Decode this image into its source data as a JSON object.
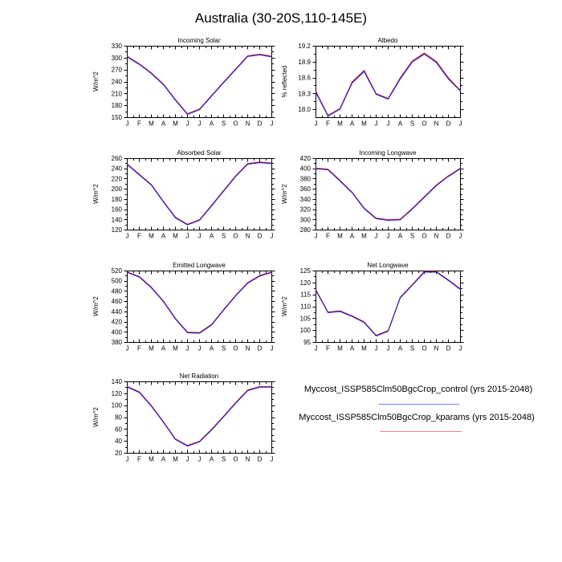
{
  "page_title": "Australia (30-20S,110-145E)",
  "months": [
    "J",
    "F",
    "M",
    "A",
    "M",
    "J",
    "J",
    "A",
    "S",
    "O",
    "N",
    "D",
    "J"
  ],
  "colors": {
    "control_line": "#2222cc",
    "kparams_line": "#cc2222",
    "legend_control_swatch": "#7a7aff",
    "legend_kparams_swatch": "#ff8080",
    "axis": "#000000"
  },
  "legend": {
    "entries": [
      {
        "name": "control",
        "label": "Myccost_ISSP585Clm50BgcCrop_control (yrs 2015-2048)"
      },
      {
        "name": "kparams",
        "label": "Myccost_ISSP585Clm50BgcCrop_kparams (yrs 2015-2048)"
      }
    ]
  },
  "chart_data": [
    {
      "type": "line",
      "title": "Incoming Solar",
      "ylabel": "W/m^2",
      "ylim": [
        150,
        330
      ],
      "yticks": [
        "150",
        "180",
        "210",
        "240",
        "270",
        "300",
        "330"
      ],
      "grid": false,
      "categories": [
        "J",
        "F",
        "M",
        "A",
        "M",
        "J",
        "J",
        "A",
        "S",
        "O",
        "N",
        "D",
        "J"
      ],
      "series": [
        {
          "name": "control",
          "values": [
            303,
            284,
            261,
            233,
            194,
            158,
            170,
            204,
            238,
            271,
            304,
            308,
            303
          ]
        },
        {
          "name": "kparams",
          "values": [
            303,
            284,
            261,
            233,
            194,
            158,
            170,
            204,
            238,
            271,
            304,
            308,
            303
          ]
        }
      ]
    },
    {
      "type": "line",
      "title": "Albedo",
      "ylabel": "% reflected",
      "ylim": [
        17.85,
        19.2
      ],
      "yticks": [
        "18.0",
        "18.3",
        "18.6",
        "18.9",
        "19.2"
      ],
      "grid": false,
      "categories": [
        "J",
        "F",
        "M",
        "A",
        "M",
        "J",
        "J",
        "A",
        "S",
        "O",
        "N",
        "D",
        "J"
      ],
      "series": [
        {
          "name": "control",
          "values": [
            18.32,
            17.88,
            18.01,
            18.5,
            18.72,
            18.29,
            18.2,
            18.58,
            18.9,
            19.05,
            18.89,
            18.58,
            18.35
          ]
        },
        {
          "name": "kparams",
          "values": [
            18.33,
            17.88,
            18.01,
            18.51,
            18.73,
            18.29,
            18.2,
            18.59,
            18.91,
            19.06,
            18.9,
            18.59,
            18.35
          ]
        }
      ]
    },
    {
      "type": "line",
      "title": "Absorbed Solar",
      "ylabel": "W/m^2",
      "ylim": [
        120,
        260
      ],
      "yticks": [
        "120",
        "140",
        "160",
        "180",
        "200",
        "220",
        "240",
        "260"
      ],
      "grid": false,
      "categories": [
        "J",
        "F",
        "M",
        "A",
        "M",
        "J",
        "J",
        "A",
        "S",
        "O",
        "N",
        "D",
        "J"
      ],
      "series": [
        {
          "name": "control",
          "values": [
            248,
            228,
            208,
            175,
            144,
            130,
            139,
            167,
            196,
            225,
            249,
            252,
            250
          ]
        },
        {
          "name": "kparams",
          "values": [
            248,
            228,
            208,
            175,
            144,
            130,
            139,
            167,
            196,
            225,
            249,
            252,
            250
          ]
        }
      ]
    },
    {
      "type": "line",
      "title": "Incoming Longwave",
      "ylabel": "W/m^2",
      "ylim": [
        280,
        420
      ],
      "yticks": [
        "280",
        "300",
        "320",
        "340",
        "360",
        "380",
        "400",
        "420"
      ],
      "grid": false,
      "categories": [
        "J",
        "F",
        "M",
        "A",
        "M",
        "J",
        "J",
        "A",
        "S",
        "O",
        "N",
        "D",
        "J"
      ],
      "series": [
        {
          "name": "control",
          "values": [
            400,
            398,
            376,
            353,
            322,
            302,
            299,
            300,
            321,
            344,
            367,
            385,
            400
          ]
        },
        {
          "name": "kparams",
          "values": [
            400,
            398,
            376,
            353,
            322,
            302,
            299,
            300,
            321,
            344,
            367,
            385,
            400
          ]
        }
      ]
    },
    {
      "type": "line",
      "title": "Emitted Longwave",
      "ylabel": "W/m^2",
      "ylim": [
        380,
        520
      ],
      "yticks": [
        "380",
        "400",
        "420",
        "440",
        "460",
        "480",
        "500",
        "520"
      ],
      "grid": false,
      "categories": [
        "J",
        "F",
        "M",
        "A",
        "M",
        "J",
        "J",
        "A",
        "S",
        "O",
        "N",
        "D",
        "J"
      ],
      "series": [
        {
          "name": "control",
          "values": [
            517,
            508,
            487,
            460,
            426,
            399,
            398,
            414,
            443,
            471,
            496,
            510,
            517
          ]
        },
        {
          "name": "kparams",
          "values": [
            517,
            508,
            487,
            460,
            426,
            399,
            398,
            414,
            443,
            471,
            496,
            510,
            517
          ]
        }
      ]
    },
    {
      "type": "line",
      "title": "Net Longwave",
      "ylabel": "W/m^2",
      "ylim": [
        95,
        125
      ],
      "yticks": [
        "95",
        "100",
        "105",
        "110",
        "115",
        "120",
        "125"
      ],
      "grid": false,
      "categories": [
        "J",
        "F",
        "M",
        "A",
        "M",
        "J",
        "J",
        "A",
        "S",
        "O",
        "N",
        "D",
        "J"
      ],
      "series": [
        {
          "name": "control",
          "values": [
            116.8,
            107.5,
            108.0,
            105.9,
            103.4,
            97.7,
            99.7,
            113.7,
            119.0,
            124.5,
            124.5,
            121.0,
            117.2
          ]
        },
        {
          "name": "kparams",
          "values": [
            116.8,
            107.5,
            108.0,
            105.9,
            103.4,
            97.7,
            99.7,
            113.7,
            119.0,
            124.5,
            124.5,
            121.0,
            117.2
          ]
        }
      ]
    },
    {
      "type": "line",
      "title": "Net Radiation",
      "ylabel": "W/m^2",
      "ylim": [
        20,
        140
      ],
      "yticks": [
        "20",
        "40",
        "60",
        "80",
        "100",
        "120",
        "140"
      ],
      "grid": false,
      "categories": [
        "J",
        "F",
        "M",
        "A",
        "M",
        "J",
        "J",
        "A",
        "S",
        "O",
        "N",
        "D",
        "J"
      ],
      "series": [
        {
          "name": "control",
          "values": [
            131,
            122,
            99,
            72,
            43,
            32,
            39,
            59,
            81,
            104,
            125,
            131,
            131
          ]
        },
        {
          "name": "kparams",
          "values": [
            131,
            122,
            99,
            72,
            43,
            32,
            39,
            59,
            81,
            104,
            125,
            131,
            131
          ]
        }
      ]
    }
  ]
}
